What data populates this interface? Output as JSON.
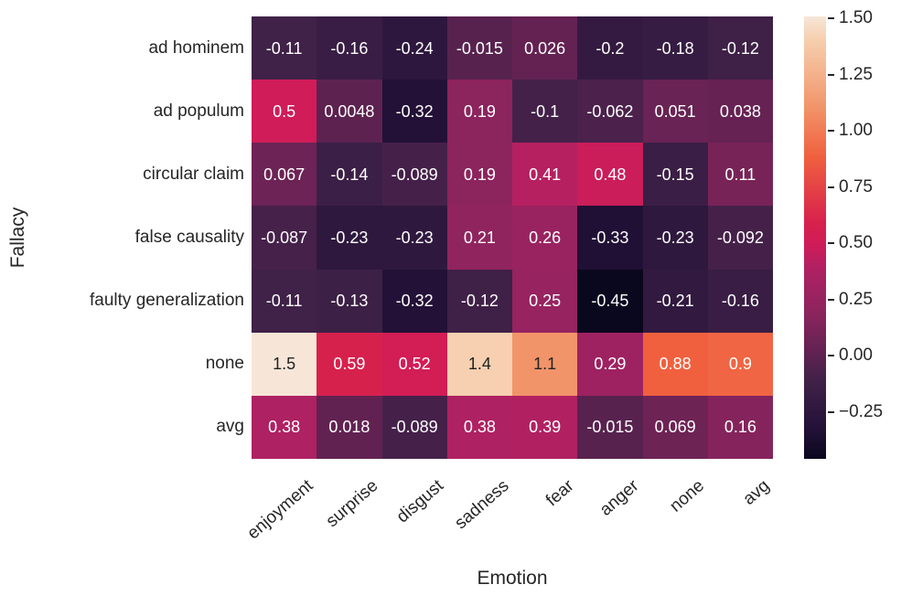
{
  "figure": {
    "background": "#ffffff",
    "text_color": "#262626",
    "annotation_light_color": "#ffffff",
    "annotation_dark_color": "#222222"
  },
  "chart_data": {
    "type": "heatmap",
    "xlabel": "Emotion",
    "ylabel": "Fallacy",
    "columns": [
      "enjoyment",
      "surprise",
      "disgust",
      "sadness",
      "fear",
      "anger",
      "none",
      "avg"
    ],
    "rows": [
      "ad hominem",
      "ad populum",
      "circular claim",
      "false causality",
      "faulty generalization",
      "none",
      "avg"
    ],
    "values": [
      [
        -0.11,
        -0.16,
        -0.24,
        -0.015,
        0.026,
        -0.2,
        -0.18,
        -0.12
      ],
      [
        0.5,
        0.0048,
        -0.32,
        0.19,
        -0.1,
        -0.062,
        0.051,
        0.038
      ],
      [
        0.067,
        -0.14,
        -0.089,
        0.19,
        0.41,
        0.48,
        -0.15,
        0.11
      ],
      [
        -0.087,
        -0.23,
        -0.23,
        0.21,
        0.26,
        -0.33,
        -0.23,
        -0.092
      ],
      [
        -0.11,
        -0.13,
        -0.32,
        -0.12,
        0.25,
        -0.45,
        -0.21,
        -0.16
      ],
      [
        1.5,
        0.59,
        0.52,
        1.4,
        1.1,
        0.29,
        0.88,
        0.9
      ],
      [
        0.38,
        0.018,
        -0.089,
        0.38,
        0.39,
        -0.015,
        0.069,
        0.16
      ]
    ],
    "labels": [
      [
        "-0.11",
        "-0.16",
        "-0.24",
        "-0.015",
        "0.026",
        "-0.2",
        "-0.18",
        "-0.12"
      ],
      [
        "0.5",
        "0.0048",
        "-0.32",
        "0.19",
        "-0.1",
        "-0.062",
        "0.051",
        "0.038"
      ],
      [
        "0.067",
        "-0.14",
        "-0.089",
        "0.19",
        "0.41",
        "0.48",
        "-0.15",
        "0.11"
      ],
      [
        "-0.087",
        "-0.23",
        "-0.23",
        "0.21",
        "0.26",
        "-0.33",
        "-0.23",
        "-0.092"
      ],
      [
        "-0.11",
        "-0.13",
        "-0.32",
        "-0.12",
        "0.25",
        "-0.45",
        "-0.21",
        "-0.16"
      ],
      [
        "1.5",
        "0.59",
        "0.52",
        "1.4",
        "1.1",
        "0.29",
        "0.88",
        "0.9"
      ],
      [
        "0.38",
        "0.018",
        "-0.089",
        "0.38",
        "0.39",
        "-0.015",
        "0.069",
        "0.16"
      ]
    ],
    "cell_colors": [
      [
        "#402148",
        "#391D44",
        "#2E173E",
        "#58224F",
        "#632252",
        "#341A41",
        "#361C42",
        "#3F2047"
      ],
      [
        "#D01C58",
        "#5D2250",
        "#231137",
        "#8C245E",
        "#432149",
        "#4C214C",
        "#692354",
        "#662253"
      ],
      [
        "#6D2355",
        "#3C1F46",
        "#45214A",
        "#8C245E",
        "#B62060",
        "#CA1D5A",
        "#3B1E45",
        "#782358"
      ],
      [
        "#46214A",
        "#2F183E",
        "#2F183E",
        "#90245F",
        "#992360",
        "#211035",
        "#2F183E",
        "#452149"
      ],
      [
        "#402148",
        "#3D2046",
        "#231137",
        "#3F2047",
        "#972360",
        "#0A081E",
        "#321940",
        "#391D44"
      ],
      [
        "#F7E6D8",
        "#D7214D",
        "#D21D55",
        "#F6D0B0",
        "#F29469",
        "#9E2261",
        "#F0603F",
        "#F06543"
      ],
      [
        "#AE2163",
        "#612251",
        "#45214A",
        "#AE2163",
        "#B12162",
        "#58224F",
        "#6E2355",
        "#85245C"
      ]
    ],
    "vmin": -0.45,
    "vmax": 1.5,
    "colormap": "rocket",
    "colormap_stops": [
      {
        "t": 0.0,
        "color": "#0A081E"
      },
      {
        "t": 0.067,
        "color": "#231137"
      },
      {
        "t": 0.174,
        "color": "#402148"
      },
      {
        "t": 0.328,
        "color": "#8C245E"
      },
      {
        "t": 0.426,
        "color": "#AE2163"
      },
      {
        "t": 0.487,
        "color": "#D01C58"
      },
      {
        "t": 0.533,
        "color": "#D7214D"
      },
      {
        "t": 0.682,
        "color": "#F0603F"
      },
      {
        "t": 0.795,
        "color": "#F29469"
      },
      {
        "t": 0.949,
        "color": "#F6D0B0"
      },
      {
        "t": 1.0,
        "color": "#F7E6D8"
      }
    ],
    "colorbar_ticks": [
      {
        "value": 1.5,
        "label": "1.50"
      },
      {
        "value": 1.25,
        "label": "1.25"
      },
      {
        "value": 1.0,
        "label": "1.00"
      },
      {
        "value": 0.75,
        "label": "0.75"
      },
      {
        "value": 0.5,
        "label": "0.50"
      },
      {
        "value": 0.25,
        "label": "0.25"
      },
      {
        "value": 0.0,
        "label": "0.00"
      },
      {
        "value": -0.25,
        "label": "−0.25"
      }
    ]
  }
}
